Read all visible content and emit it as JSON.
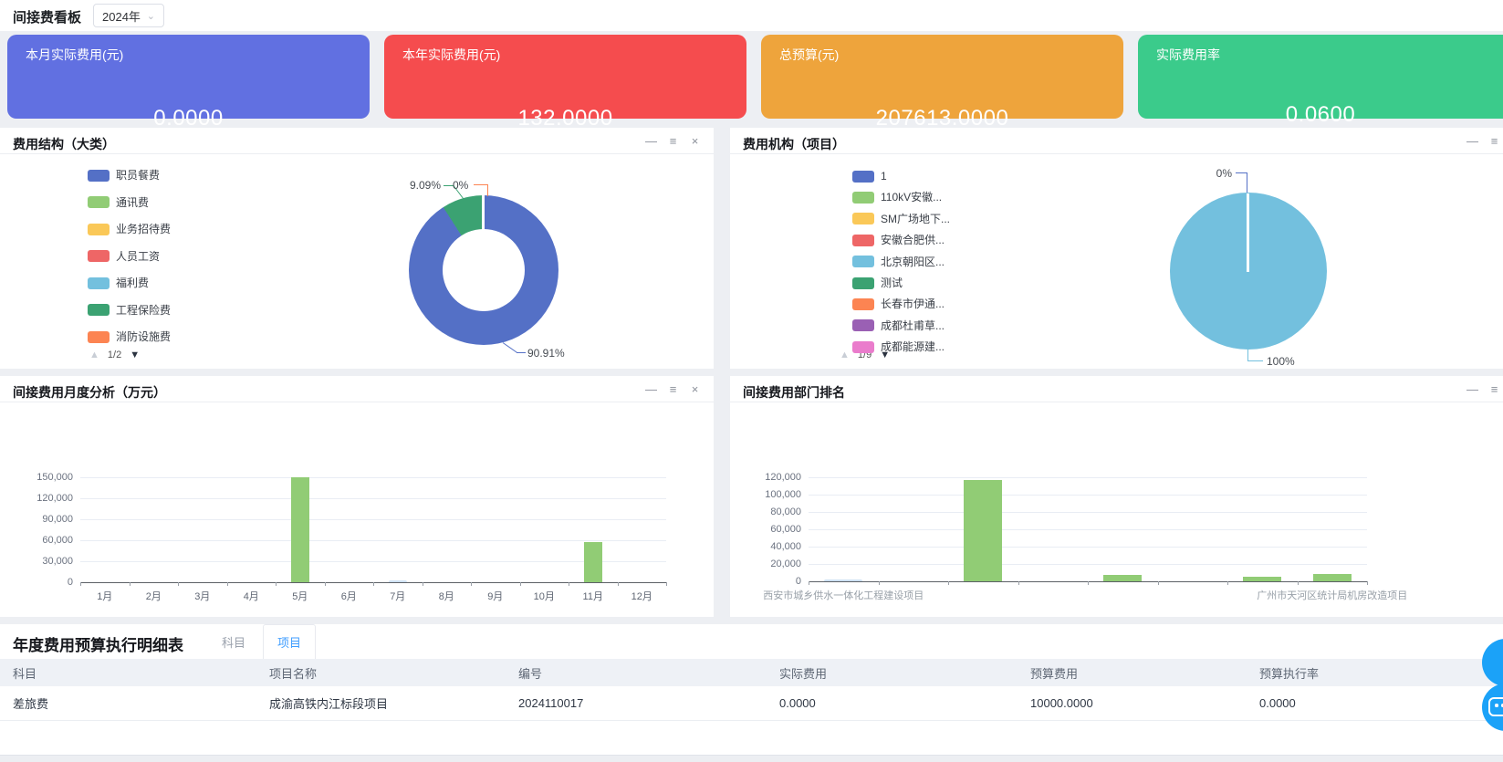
{
  "header": {
    "title": "间接费看板",
    "year_select": {
      "value": "2024年"
    }
  },
  "ui": {
    "icons": {
      "minimize": "—",
      "menu": "≡",
      "close": "×",
      "page_up": "▲",
      "page_down": "▼",
      "chevron_down": "⌄"
    }
  },
  "kpi_cards": [
    {
      "label": "本月实际费用(元)",
      "value": "0.0000",
      "color": "#6170e1"
    },
    {
      "label": "本年实际费用(元)",
      "value": "132.0000",
      "color": "#f54c4e"
    },
    {
      "label": "总预算(元)",
      "value": "207613.0000",
      "color": "#eea43c"
    },
    {
      "label": "实际费用率",
      "value": "0.0600",
      "color": "#3bcb8b"
    }
  ],
  "panels": {
    "expense_structure": {
      "title": "费用结构（大类）",
      "legend": [
        {
          "label": "职员餐费",
          "color": "#5470c6"
        },
        {
          "label": "通讯费",
          "color": "#91cc75"
        },
        {
          "label": "业务招待费",
          "color": "#fac858"
        },
        {
          "label": "人员工资",
          "color": "#ee6666"
        },
        {
          "label": "福利费",
          "color": "#73c0de"
        },
        {
          "label": "工程保险费",
          "color": "#3ba272"
        },
        {
          "label": "消防设施费",
          "color": "#fc8452"
        }
      ],
      "pagination": {
        "page": "1/2"
      },
      "chart_data": {
        "type": "pie",
        "subtype": "donut",
        "slices": [
          {
            "name": "职员餐费",
            "percent": 90.91,
            "color": "#5470c6",
            "label": "90.91%"
          },
          {
            "name": "工程保险费",
            "percent": 9.09,
            "color": "#3ba272",
            "label": "9.09%"
          },
          {
            "name": "消防设施费",
            "percent": 0,
            "color": "#fc8452",
            "label": "0%"
          }
        ]
      }
    },
    "expense_org": {
      "title": "费用机构（项目）",
      "legend": [
        {
          "label": "1",
          "color": "#5470c6"
        },
        {
          "label": "110kV安徽...",
          "color": "#91cc75"
        },
        {
          "label": "SM广场地下...",
          "color": "#fac858"
        },
        {
          "label": "安徽合肥供...",
          "color": "#ee6666"
        },
        {
          "label": "北京朝阳区...",
          "color": "#73c0de"
        },
        {
          "label": "测试",
          "color": "#3ba272"
        },
        {
          "label": "长春市伊通...",
          "color": "#fc8452"
        },
        {
          "label": "成都杜甫草...",
          "color": "#9a60b4"
        },
        {
          "label": "成都能源建...",
          "color": "#ea7ccc"
        }
      ],
      "pagination": {
        "page": "1/9"
      },
      "chart_data": {
        "type": "pie",
        "slices": [
          {
            "name": "1",
            "percent": 0,
            "color": "#5470c6",
            "label": "0%"
          },
          {
            "name": "北京朝阳区...",
            "percent": 100,
            "color": "#73c0de",
            "label": "100%"
          }
        ]
      }
    },
    "monthly_analysis": {
      "title": "间接费用月度分析（万元）",
      "chart_data": {
        "type": "bar",
        "categories": [
          "1月",
          "2月",
          "3月",
          "4月",
          "5月",
          "6月",
          "7月",
          "8月",
          "9月",
          "10月",
          "11月",
          "12月"
        ],
        "values": [
          0,
          0,
          0,
          0,
          150000,
          0,
          2000,
          0,
          0,
          0,
          58000,
          0
        ],
        "bar_color": "#91cc75",
        "color_overrides": {
          "6": "#cfe2f4"
        },
        "y_ticks": [
          0,
          30000,
          60000,
          90000,
          120000,
          150000
        ],
        "y_tick_labels": [
          "0",
          "30,000",
          "60,000",
          "90,000",
          "120,000",
          "150,000"
        ],
        "ylim": [
          0,
          150000
        ]
      }
    },
    "dept_ranking": {
      "title": "间接费用部门排名",
      "chart_data": {
        "type": "bar",
        "categories": [
          "西安市城乡供水一体化工程建设项目",
          "",
          "",
          "",
          "",
          "",
          "",
          "广州市天河区统计局机房改造项目"
        ],
        "values": [
          600,
          0,
          117000,
          0,
          7500,
          0,
          5000,
          8500
        ],
        "bar_color": "#91cc75",
        "color_overrides": {
          "0": "#cfe2f4"
        },
        "y_ticks": [
          0,
          20000,
          40000,
          60000,
          80000,
          100000,
          120000
        ],
        "y_tick_labels": [
          "0",
          "20,000",
          "40,000",
          "60,000",
          "80,000",
          "100,000",
          "120,000"
        ],
        "ylim": [
          0,
          120000
        ]
      }
    }
  },
  "table": {
    "title": "年度费用预算执行明细表",
    "tabs": [
      {
        "label": "科目",
        "active": false
      },
      {
        "label": "项目",
        "active": true
      }
    ],
    "columns": [
      "科目",
      "项目名称",
      "编号",
      "实际费用",
      "预算费用",
      "预算执行率"
    ],
    "rows": [
      [
        "差旅费",
        "成渝高铁内江标段项目",
        "2024110017",
        "0.0000",
        "10000.0000",
        "0.0000"
      ]
    ]
  }
}
